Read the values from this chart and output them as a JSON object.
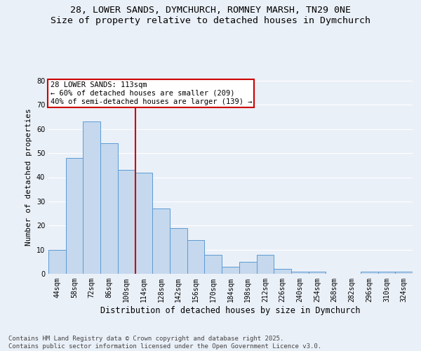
{
  "title_line1": "28, LOWER SANDS, DYMCHURCH, ROMNEY MARSH, TN29 0NE",
  "title_line2": "Size of property relative to detached houses in Dymchurch",
  "xlabel": "Distribution of detached houses by size in Dymchurch",
  "ylabel": "Number of detached properties",
  "categories": [
    "44sqm",
    "58sqm",
    "72sqm",
    "86sqm",
    "100sqm",
    "114sqm",
    "128sqm",
    "142sqm",
    "156sqm",
    "170sqm",
    "184sqm",
    "198sqm",
    "212sqm",
    "226sqm",
    "240sqm",
    "254sqm",
    "268sqm",
    "282sqm",
    "296sqm",
    "310sqm",
    "324sqm"
  ],
  "values": [
    10,
    48,
    63,
    54,
    43,
    42,
    27,
    19,
    14,
    8,
    3,
    5,
    8,
    2,
    1,
    1,
    0,
    0,
    1,
    1,
    1
  ],
  "bar_color": "#c5d8ed",
  "bar_edge_color": "#5b9bd5",
  "vline_index": 5,
  "annotation_line1": "28 LOWER SANDS: 113sqm",
  "annotation_line2": "← 60% of detached houses are smaller (209)",
  "annotation_line3": "40% of semi-detached houses are larger (139) →",
  "annotation_box_color": "#ffffff",
  "annotation_box_edge": "#cc0000",
  "vline_color": "#cc0000",
  "ylim": [
    0,
    80
  ],
  "yticks": [
    0,
    10,
    20,
    30,
    40,
    50,
    60,
    70,
    80
  ],
  "footer_line1": "Contains HM Land Registry data © Crown copyright and database right 2025.",
  "footer_line2": "Contains public sector information licensed under the Open Government Licence v3.0.",
  "bg_color": "#eaf0f8",
  "plot_bg_color": "#eaf0f8",
  "grid_color": "#ffffff",
  "title_fontsize": 9.5,
  "subtitle_fontsize": 9.5,
  "footer_fontsize": 6.5,
  "tick_fontsize": 7,
  "ylabel_fontsize": 8,
  "xlabel_fontsize": 8.5,
  "ann_fontsize": 7.5
}
